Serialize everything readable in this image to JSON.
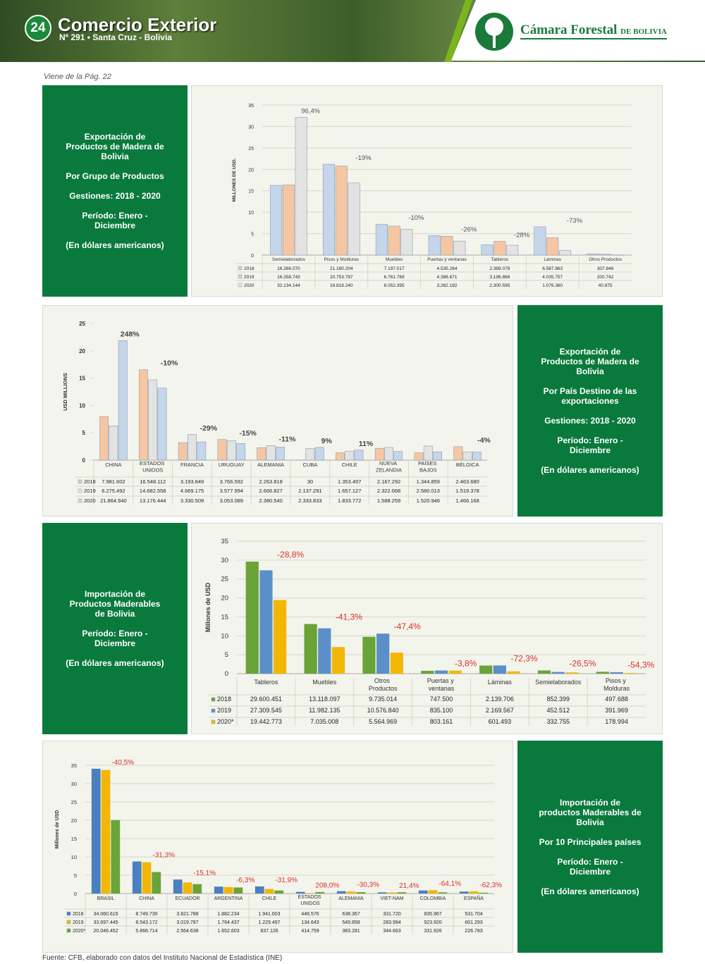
{
  "header": {
    "page_number": "24",
    "title": "Comercio Exterior",
    "subtitle": "Nº 291 • Santa Cruz - Bolivia",
    "logo_name": "Cámara Forestal",
    "logo_suffix": "DE BOLIVIA"
  },
  "note": "Viene de la Pág. 22",
  "panels": [
    {
      "lines": [
        "Exportación de Productos de Madera de Bolivia",
        "Por Grupo de Productos",
        "Gestiones: 2018 - 2020",
        "Período: Enero - Diciembre",
        "(En dólares americanos)"
      ]
    },
    {
      "lines": [
        "Exportación de Productos de Madera de Bolivia",
        "Por País Destino de las exportaciones",
        "Gestiones: 2018 - 2020",
        "Período: Enero - Diciembre",
        "(En dólares americanos)"
      ]
    },
    {
      "lines": [
        "Importación de Productos Maderables de Bolivia",
        "Período: Enero - Diciembre",
        "(En dólares americanos)"
      ]
    },
    {
      "lines": [
        "Importación de productos Maderables de Bolivia",
        "Por 10 Principales países",
        "Período: Enero - Diciembre",
        "(En dólares americanos)"
      ]
    }
  ],
  "chart_data": [
    {
      "type": "bar",
      "y_label": "MILLONES DE USD.",
      "ylim": [
        0,
        35
      ],
      "yticks": [
        0,
        5,
        10,
        15,
        20,
        25,
        30,
        35
      ],
      "grid": true,
      "annotation_color": "#555555",
      "categories": [
        "Semielaborados",
        "Pisos y Molduras",
        "Muebles",
        "Puertas y ventanas",
        "Tableros",
        "Láminas",
        "Otros Productos"
      ],
      "annotations": [
        "96,4%",
        "-19%",
        "-10%",
        "-26%",
        "-28%",
        "-73%",
        null
      ],
      "series": [
        {
          "name": "2018",
          "color": "#c5d5ea",
          "values": [
            16.26607,
            21.180204,
            7.197017,
            4.535264,
            2.388078,
            6.587863,
            0.307846
          ],
          "value_labels": [
            "16.266.070",
            "21.180.204",
            "7.197.017",
            "4.535.264",
            "2.388.078",
            "6.587.863",
            "307.846"
          ]
        },
        {
          "name": "2019",
          "color": "#f6c6a3",
          "values": [
            16.358743,
            20.753787,
            6.761769,
            4.388671,
            3.196866,
            4.035757,
            0.200742
          ],
          "value_labels": [
            "16.358.743",
            "20.753.787",
            "6.761.769",
            "4.388.671",
            "3.196.866",
            "4.035.757",
            "200.742"
          ]
        },
        {
          "name": "2020",
          "color": "#e3e3e3",
          "values": [
            32.134144,
            16.81824,
            6.052395,
            3.262192,
            2.300595,
            1.07636,
            0.040875
          ],
          "value_labels": [
            "32.134.144",
            "16.818.240",
            "6.052.395",
            "3.262.192",
            "2.300.595",
            "1.076.360",
            "40.875"
          ]
        }
      ]
    },
    {
      "type": "bar",
      "y_label": "USD MILLIONS",
      "ylim": [
        0,
        25
      ],
      "yticks": [
        0,
        5,
        10,
        15,
        20,
        25
      ],
      "grid": false,
      "annotation_color": "#444444",
      "categories": [
        "CHINA",
        "ESTADOS UNIDOS",
        "FRANCIA",
        "URUGUAY",
        "ALEMANIA",
        "CUBA",
        "CHILE",
        "NUEVA ZELANDIA",
        "PAÍSES BAJOS",
        "BÉLGICA"
      ],
      "annotations": [
        "248%",
        "-10%",
        "-29%",
        "-15%",
        "-11%",
        "9%",
        "11%",
        null,
        null,
        "-4%"
      ],
      "series": [
        {
          "name": "2018",
          "color": "#f6c6a3",
          "values": [
            7.981602,
            16.548112,
            3.193849,
            3.766592,
            2.263818,
            3e-05,
            1.353497,
            2.167292,
            1.344859,
            2.46368
          ],
          "value_labels": [
            "7.981.602",
            "16.548.112",
            "3.193.849",
            "3.766.592",
            "2.263.818",
            "30",
            "1.353.497",
            "2.167.292",
            "1.344.859",
            "2.463.680"
          ]
        },
        {
          "name": "2019",
          "color": "#e3e3e3",
          "values": [
            6.275492,
            14.682558,
            4.669175,
            3.577994,
            2.666827,
            2.137291,
            1.657127,
            2.322068,
            2.580013,
            1.519378
          ],
          "value_labels": [
            "6.275.492",
            "14.682.558",
            "4.669.175",
            "3.577.994",
            "2.666.827",
            "2.137.291",
            "1.657.127",
            "2.322.068",
            "2.580.013",
            "1.519.378"
          ]
        },
        {
          "name": "2020",
          "color": "#c5d5ea",
          "values": [
            21.86494,
            13.176444,
            3.330509,
            3.053089,
            2.38054,
            2.333833,
            1.833772,
            1.588259,
            1.520946,
            1.466168
          ],
          "value_labels": [
            "21.864.940",
            "13.176.444",
            "3.330.509",
            "3.053.089",
            "2.380.540",
            "2.333.833",
            "1.833.772",
            "1.588.259",
            "1.520.946",
            "1.466.168"
          ]
        }
      ]
    },
    {
      "type": "bar",
      "y_label": "Millones de USD",
      "ylim": [
        0,
        35
      ],
      "yticks": [
        0,
        5,
        10,
        15,
        20,
        25,
        30,
        35
      ],
      "grid": true,
      "annotation_color": "#d9322a",
      "categories": [
        "Tableros",
        "Muebles",
        "Otros Productos",
        "Puertas y ventanas",
        "Láminas",
        "Semielaborados",
        "Pisos y Molduras"
      ],
      "annotations": [
        "-28,8%",
        "-41,3%",
        "-47,4%",
        "-3,8%",
        "-72,3%",
        "-26,5%",
        "-54,3%"
      ],
      "series": [
        {
          "name": "2018",
          "color": "#6aa338",
          "values": [
            29.600451,
            13.118097,
            9.735014,
            0.7475,
            2.139706,
            0.852399,
            0.497688
          ],
          "value_labels": [
            "29.600.451",
            "13.118.097",
            "9.735.014",
            "747.500",
            "2.139.706",
            "852.399",
            "497.688"
          ]
        },
        {
          "name": "2019",
          "color": "#5b8fc9",
          "values": [
            27.309545,
            11.982135,
            10.57684,
            0.8351,
            2.169567,
            0.452512,
            0.391969
          ],
          "value_labels": [
            "27.309.545",
            "11.982.135",
            "10.576.840",
            "835.100",
            "2.169.567",
            "452.512",
            "391.969"
          ]
        },
        {
          "name": "2020*",
          "color": "#f2b705",
          "values": [
            19.442773,
            7.035008,
            5.564969,
            0.803161,
            0.601493,
            0.332755,
            0.178994
          ],
          "value_labels": [
            "19.442.773",
            "7.035.008",
            "5.564.969",
            "803.161",
            "601.493",
            "332.755",
            "178.994"
          ]
        }
      ]
    },
    {
      "type": "bar",
      "y_label": "Millones de USD",
      "ylim": [
        0,
        35
      ],
      "yticks": [
        0,
        5,
        10,
        15,
        20,
        25,
        30,
        35
      ],
      "grid": true,
      "annotation_color": "#d9322a",
      "categories": [
        "BRASIL",
        "CHINA",
        "ECUADOR",
        "ARGENTINA",
        "CHILE",
        "ESTADOS UNIDOS",
        "ALEMANIA",
        "VIET-NAM",
        "COLOMBIA",
        "ESPAÑA"
      ],
      "annotations": [
        "-40,5%",
        "-31,3%",
        "-15,1%",
        "-6,3%",
        "-31,9%",
        "208,0%",
        "-30,3%",
        "21,4%",
        "-64,1%",
        "-62,3%"
      ],
      "series": [
        {
          "name": "2018",
          "color": "#4a7fc1",
          "values": [
            34.060615,
            8.74973,
            3.821788,
            1.882234,
            1.941603,
            0.446576,
            0.638367,
            0.33172,
            0.835967,
            0.531704
          ],
          "value_labels": [
            "34.060.615",
            "8.749.730",
            "3.821.788",
            "1.882.234",
            "1.941.603",
            "446.576",
            "638.367",
            "331.720",
            "835.967",
            "531.704"
          ]
        },
        {
          "name": "2019",
          "color": "#f2b705",
          "values": [
            33.697445,
            8.543172,
            3.019787,
            1.764437,
            1.229497,
            0.134643,
            0.549858,
            0.283994,
            0.92392,
            0.601293
          ],
          "value_labels": [
            "33.697.445",
            "8.543.172",
            "3.019.787",
            "1.764.437",
            "1.229.497",
            "134.643",
            "549.858",
            "283.994",
            "923.920",
            "601.293"
          ]
        },
        {
          "name": "2020*",
          "color": "#6aa338",
          "values": [
            20.046452,
            5.866714,
            2.564638,
            1.652603,
            0.837126,
            0.414759,
            0.383281,
            0.344663,
            0.331926,
            0.226783
          ],
          "value_labels": [
            "20.046.452",
            "5.866.714",
            "2.564.638",
            "1.652.603",
            "837.126",
            "414.759",
            "383.281",
            "344.663",
            "331.926",
            "226.783"
          ]
        }
      ]
    }
  ],
  "source": "Fuente: CFB, elaborado con datos del Instituto Nacional de Estadística (INE)"
}
